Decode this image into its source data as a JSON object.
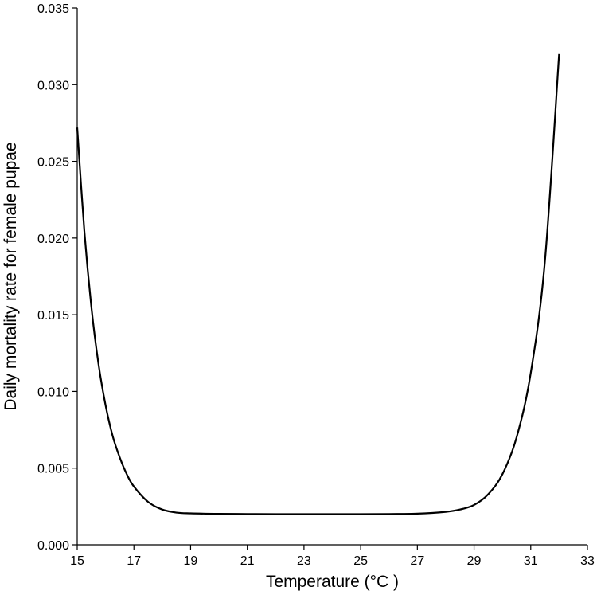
{
  "chart_data": {
    "type": "line",
    "xlabel": "Temperature (°C )",
    "ylabel": "Daily mortality rate for female pupae",
    "xlim": [
      15,
      33
    ],
    "ylim": [
      0,
      0.035
    ],
    "x_ticks": [
      15,
      17,
      19,
      21,
      23,
      25,
      27,
      29,
      31,
      33
    ],
    "x_tick_labels": [
      "15",
      "17",
      "19",
      "21",
      "23",
      "25",
      "27",
      "29",
      "31",
      "33"
    ],
    "y_ticks": [
      0,
      0.005,
      0.01,
      0.015,
      0.02,
      0.025,
      0.03,
      0.035
    ],
    "y_tick_labels": [
      "0.000",
      "0.005",
      "0.010",
      "0.015",
      "0.020",
      "0.025",
      "0.030",
      "0.035"
    ],
    "grid": false,
    "legend": "none",
    "line_color": "#000000",
    "series": [
      {
        "x": [
          15.0,
          15.25,
          15.5,
          15.75,
          16.0,
          16.25,
          16.5,
          16.75,
          17.0,
          17.5,
          18.0,
          18.5,
          19.0,
          20.0,
          21.0,
          22.0,
          23.0,
          24.0,
          25.0,
          26.0,
          27.0,
          28.0,
          28.5,
          29.0,
          29.5,
          30.0,
          30.5,
          31.0,
          31.5,
          32.0
        ],
        "y": [
          0.0272,
          0.0205,
          0.0155,
          0.0118,
          0.0091,
          0.0071,
          0.0057,
          0.0046,
          0.0038,
          0.0028,
          0.0023,
          0.0021,
          0.00205,
          0.00202,
          0.00201,
          0.002,
          0.002,
          0.002,
          0.002,
          0.00201,
          0.00203,
          0.00215,
          0.0023,
          0.0026,
          0.0033,
          0.0046,
          0.007,
          0.0112,
          0.0185,
          0.032
        ]
      }
    ]
  }
}
